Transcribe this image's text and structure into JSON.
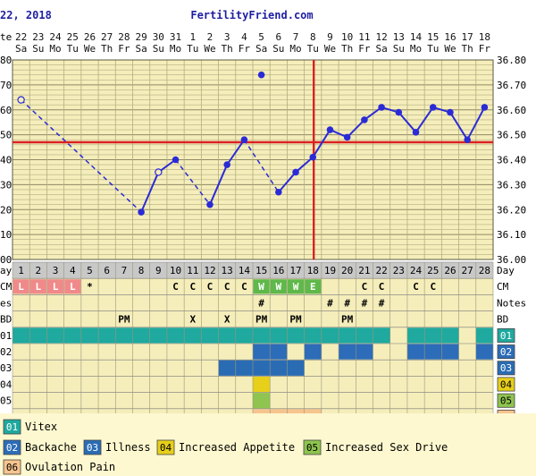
{
  "header": {
    "date_text": "22, 2018",
    "site": "FertilityFriend.com"
  },
  "chart_data": {
    "type": "line",
    "left_axis_label_fragments": [
      "te",
      "80",
      "70",
      "60",
      "50",
      "40",
      "30",
      "20",
      "10",
      "00"
    ],
    "right_axis_ticks": [
      36.0,
      36.1,
      36.2,
      36.3,
      36.4,
      36.5,
      36.6,
      36.7,
      36.8
    ],
    "right_axis_tick_labels": [
      "36.00",
      "36.10",
      "36.20",
      "36.30",
      "36.40",
      "36.50",
      "36.60",
      "36.70",
      "36.80"
    ],
    "ylim": [
      36.0,
      36.8
    ],
    "grid": true,
    "dates": [
      "22",
      "23",
      "24",
      "25",
      "26",
      "27",
      "28",
      "29",
      "30",
      "31",
      "1",
      "2",
      "3",
      "4",
      "5",
      "6",
      "7",
      "8",
      "9",
      "10",
      "11",
      "12",
      "13",
      "14",
      "15",
      "16",
      "17",
      "18"
    ],
    "weekdays": [
      "Sa",
      "Su",
      "Mo",
      "Tu",
      "We",
      "Th",
      "Fr",
      "Sa",
      "Su",
      "Mo",
      "Tu",
      "We",
      "Th",
      "Fr",
      "Sa",
      "Su",
      "Mo",
      "Tu",
      "We",
      "Th",
      "Fr",
      "Sa",
      "Su",
      "Mo",
      "Tu",
      "We",
      "Th",
      "Fr"
    ],
    "cycle_days": [
      "1",
      "2",
      "3",
      "4",
      "5",
      "6",
      "7",
      "8",
      "9",
      "10",
      "11",
      "12",
      "13",
      "14",
      "15",
      "16",
      "17",
      "18",
      "19",
      "20",
      "21",
      "22",
      "23",
      "24",
      "25",
      "26",
      "27",
      "28"
    ],
    "temps": [
      36.64,
      null,
      null,
      null,
      null,
      null,
      null,
      36.19,
      36.35,
      36.4,
      null,
      36.22,
      36.38,
      36.48,
      36.74,
      36.27,
      36.35,
      36.41,
      36.52,
      36.49,
      36.56,
      36.61,
      36.59,
      36.51,
      36.61,
      36.59,
      36.48,
      36.61
    ],
    "discarded_days": [
      1,
      9
    ],
    "outlier_days": [
      15
    ],
    "connections": [
      {
        "from": 1,
        "to": 8,
        "style": "dashed"
      },
      {
        "from": 8,
        "to": 9,
        "style": "solid"
      },
      {
        "from": 9,
        "to": 10,
        "style": "solid"
      },
      {
        "from": 10,
        "to": 12,
        "style": "dashed"
      },
      {
        "from": 12,
        "to": 13,
        "style": "solid"
      },
      {
        "from": 13,
        "to": 14,
        "style": "solid"
      },
      {
        "from": 14,
        "to": 16,
        "style": "dashed"
      },
      {
        "from": 16,
        "to": 17,
        "style": "solid"
      },
      {
        "from": 17,
        "to": 18,
        "style": "solid"
      },
      {
        "from": 18,
        "to": 19,
        "style": "solid"
      },
      {
        "from": 19,
        "to": 20,
        "style": "solid"
      },
      {
        "from": 20,
        "to": 21,
        "style": "solid"
      },
      {
        "from": 21,
        "to": 22,
        "style": "solid"
      },
      {
        "from": 22,
        "to": 23,
        "style": "solid"
      },
      {
        "from": 23,
        "to": 24,
        "style": "solid"
      },
      {
        "from": 24,
        "to": 25,
        "style": "solid"
      },
      {
        "from": 25,
        "to": 26,
        "style": "solid"
      },
      {
        "from": 26,
        "to": 27,
        "style": "solid"
      },
      {
        "from": 27,
        "to": 28,
        "style": "solid"
      }
    ],
    "coverline": 36.47,
    "ovulation_day": 18,
    "colors": {
      "grid_bg": "#f5eebb",
      "grid_line": "#b3ad82",
      "temp_line": "#2b2bd6",
      "red_line": "#d92121",
      "period": "#f08a8a",
      "cm_egg": "#5fb84a",
      "vitex": "#1fa99f",
      "backache": "#2c6cb8",
      "illness": "#2a6cb4",
      "appetite": "#e7cf1a",
      "sexdrive": "#8ec44f",
      "ovulation_pain": "#f7c48e",
      "row_band": "#f5eebb"
    },
    "rows": {
      "day_label": "Day",
      "cm_label": "CM",
      "notes_label": "Notes",
      "bd_label": "BD",
      "cm": [
        "L",
        "L",
        "L",
        "L",
        "*",
        "",
        "",
        "",
        "",
        "C",
        "C",
        "C",
        "C",
        "C",
        "W",
        "W",
        "W",
        "E",
        "",
        "",
        "C",
        "C",
        "",
        "C",
        "C",
        "",
        "",
        ""
      ],
      "period_days": [
        1,
        2,
        3,
        4
      ],
      "egg_cm_days": [
        15,
        16,
        17,
        18
      ],
      "notes": [
        "",
        "",
        "",
        "",
        "",
        "",
        "",
        "",
        "",
        "",
        "",
        "",
        "",
        "",
        "#",
        "",
        "",
        "",
        "#",
        "#",
        "#",
        "#",
        "",
        "",
        "",
        "",
        "",
        ""
      ],
      "bd": [
        "",
        "",
        "",
        "",
        "",
        "",
        "PM",
        "",
        "",
        "",
        "X",
        "",
        "X",
        "",
        "PM",
        "",
        "PM",
        "",
        "",
        "PM",
        "",
        "",
        "",
        "",
        "",
        "",
        "",
        ""
      ]
    },
    "symptom_rows": [
      {
        "code": "01",
        "days": [
          1,
          2,
          3,
          4,
          5,
          6,
          7,
          8,
          9,
          10,
          11,
          12,
          13,
          14,
          15,
          16,
          17,
          18,
          19,
          20,
          21,
          22,
          24,
          25,
          26,
          28
        ]
      },
      {
        "code": "02",
        "days": [
          15,
          16,
          18,
          20,
          21,
          24,
          25,
          26,
          28
        ]
      },
      {
        "code": "03",
        "days": [
          13,
          14,
          15,
          16,
          17
        ]
      },
      {
        "code": "04",
        "days": [
          15
        ]
      },
      {
        "code": "05",
        "days": [
          15
        ]
      },
      {
        "code": "06",
        "days": [
          15,
          16,
          17,
          18
        ]
      }
    ],
    "symptom_left_fragments": [
      "01",
      "02",
      "03",
      "04",
      "05",
      "06"
    ],
    "legend": [
      {
        "code": "01",
        "label": "Vitex",
        "color_key": "vitex"
      },
      {
        "code": "02",
        "label": "Backache",
        "color_key": "backache"
      },
      {
        "code": "03",
        "label": "Illness",
        "color_key": "illness"
      },
      {
        "code": "04",
        "label": "Increased Appetite",
        "color_key": "appetite"
      },
      {
        "code": "05",
        "label": "Increased Sex Drive",
        "color_key": "sexdrive"
      },
      {
        "code": "06",
        "label": "Ovulation Pain",
        "color_key": "ovulation_pain"
      }
    ]
  }
}
